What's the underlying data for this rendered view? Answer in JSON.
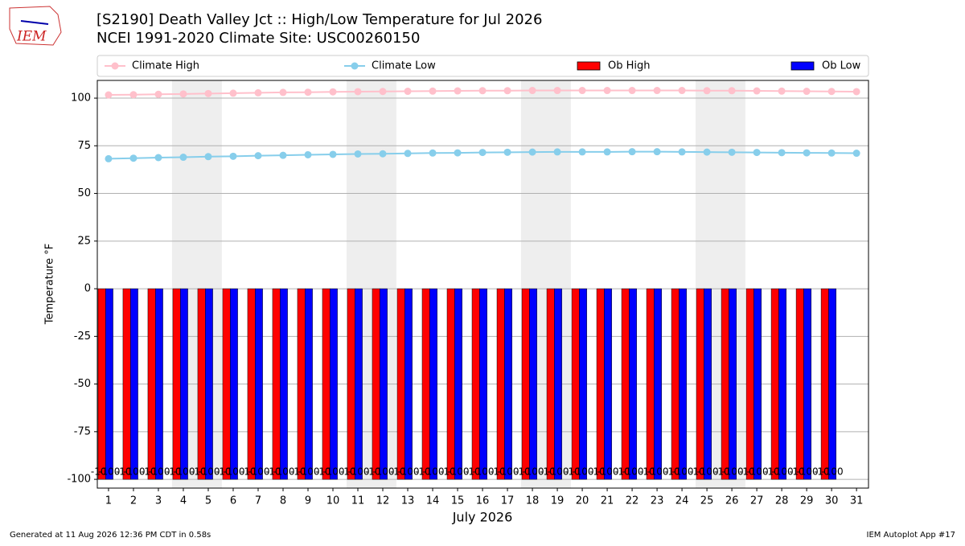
{
  "header": {
    "logo": "IEM",
    "footer_left": "Generated at 11 Aug 2026 12:36 PM CDT in 0.58s",
    "footer_right": "IEM Autoplot App #17"
  },
  "chart_data": {
    "type": "bar_line",
    "title": "[S2190] Death Valley Jct :: High/Low Temperature for Jul 2026",
    "subtitle": "NCEI 1991-2020 Climate Site: USC00260150",
    "ylabel": "Temperature °F",
    "xlabel": "July 2026",
    "x": [
      1,
      2,
      3,
      4,
      5,
      6,
      7,
      8,
      9,
      10,
      11,
      12,
      13,
      14,
      15,
      16,
      17,
      18,
      19,
      20,
      21,
      22,
      23,
      24,
      25,
      26,
      27,
      28,
      29,
      30,
      31
    ],
    "xlim": [
      0.55,
      31.48
    ],
    "xticks": [
      1,
      2,
      3,
      4,
      5,
      6,
      7,
      8,
      9,
      10,
      11,
      12,
      13,
      14,
      15,
      16,
      17,
      18,
      19,
      20,
      21,
      22,
      23,
      24,
      25,
      26,
      27,
      28,
      29,
      30,
      31
    ],
    "ylim": [
      -104.6,
      109.3
    ],
    "yticks": [
      -100,
      -75,
      -50,
      -25,
      0,
      25,
      50,
      75,
      100
    ],
    "grid": true,
    "series": [
      {
        "name": "Climate High",
        "kind": "line",
        "color": "#ffc0cb",
        "values": [
          101.7,
          101.8,
          102.0,
          102.2,
          102.4,
          102.6,
          102.8,
          103.0,
          103.1,
          103.3,
          103.4,
          103.5,
          103.6,
          103.7,
          103.8,
          103.9,
          103.9,
          104.0,
          104.0,
          104.0,
          104.0,
          104.0,
          104.0,
          104.0,
          103.9,
          103.9,
          103.8,
          103.7,
          103.6,
          103.5,
          103.4
        ]
      },
      {
        "name": "Climate Low",
        "kind": "line",
        "color": "#87ceeb",
        "values": [
          68.2,
          68.5,
          68.8,
          69.0,
          69.3,
          69.5,
          69.8,
          70.0,
          70.3,
          70.5,
          70.7,
          70.8,
          71.0,
          71.2,
          71.3,
          71.5,
          71.6,
          71.7,
          71.8,
          71.8,
          71.8,
          71.9,
          71.9,
          71.8,
          71.7,
          71.6,
          71.5,
          71.4,
          71.3,
          71.2,
          71.1
        ]
      },
      {
        "name": "Ob High",
        "kind": "bar",
        "color": "#ff0000",
        "values": [
          -100,
          -100,
          -100,
          -100,
          -100,
          -100,
          -100,
          -100,
          -100,
          -100,
          -100,
          -100,
          -100,
          -100,
          -100,
          -100,
          -100,
          -100,
          -100,
          -100,
          -100,
          -100,
          -100,
          -100,
          -100,
          -100,
          -100,
          -100,
          -100,
          -100,
          null
        ]
      },
      {
        "name": "Ob Low",
        "kind": "bar",
        "color": "#0000ff",
        "values": [
          -100,
          -100,
          -100,
          -100,
          -100,
          -100,
          -100,
          -100,
          -100,
          -100,
          -100,
          -100,
          -100,
          -100,
          -100,
          -100,
          -100,
          -100,
          -100,
          -100,
          -100,
          -100,
          -100,
          -100,
          -100,
          -100,
          -100,
          -100,
          -100,
          -100,
          null
        ]
      }
    ]
  }
}
